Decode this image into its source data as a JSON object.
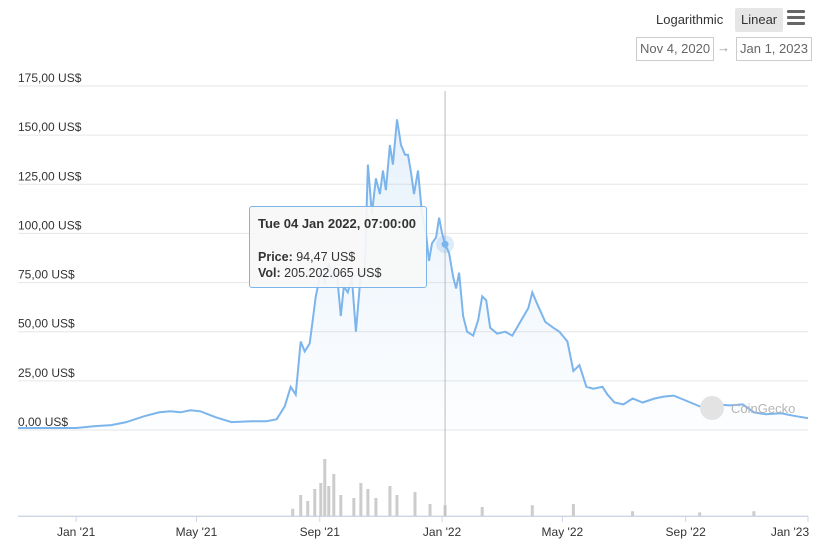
{
  "toolbar": {
    "log_label": "Logarithmic",
    "linear_label": "Linear",
    "menu_icon": "hamburger-menu-icon",
    "date_from": "Nov 4, 2020",
    "date_arrow": "→",
    "date_to": "Jan 1, 2023"
  },
  "tooltip": {
    "date": "Tue 04 Jan 2022, 07:00:00",
    "price_label": "Price:",
    "price_value": "94,47 US$",
    "vol_label": "Vol:",
    "vol_value": "205.202.065 US$"
  },
  "watermark": {
    "text": "CoinGecko",
    "icon": "coingecko-logo-icon"
  },
  "colors": {
    "line": "#7cb5ec",
    "grid": "#e6e6e6",
    "volume": "#cccccc"
  },
  "chart_data": {
    "type": "line",
    "x_range": [
      "2020-11-04",
      "2023-01-01"
    ],
    "ylim": [
      0,
      175
    ],
    "y_ticks": [
      "0,00 US$",
      "25,00 US$",
      "50,00 US$",
      "75,00 US$",
      "100,00 US$",
      "125,00 US$",
      "150,00 US$",
      "175,00 US$"
    ],
    "x_ticks": [
      "Jan '21",
      "May '21",
      "Sep '21",
      "Jan '22",
      "May '22",
      "Sep '22",
      "Jan '23"
    ],
    "x_tick_dates": [
      "2021-01-01",
      "2021-05-01",
      "2021-09-01",
      "2022-01-01",
      "2022-05-01",
      "2022-09-01",
      "2023-01-01"
    ],
    "grid": true,
    "crosshair_date": "2022-01-04",
    "series": [
      {
        "values": [
          [
            "2020-11-04",
            1.0
          ],
          [
            "2020-12-01",
            1.0
          ],
          [
            "2021-01-01",
            1.0
          ],
          [
            "2021-01-20",
            2.0
          ],
          [
            "2021-02-05",
            2.5
          ],
          [
            "2021-02-20",
            4.0
          ],
          [
            "2021-03-10",
            7.0
          ],
          [
            "2021-03-25",
            9.0
          ],
          [
            "2021-04-05",
            9.5
          ],
          [
            "2021-04-15",
            9.0
          ],
          [
            "2021-04-25",
            10.0
          ],
          [
            "2021-05-05",
            9.5
          ],
          [
            "2021-05-20",
            6.5
          ],
          [
            "2021-06-05",
            4.0
          ],
          [
            "2021-06-25",
            4.5
          ],
          [
            "2021-07-10",
            4.5
          ],
          [
            "2021-07-20",
            5.5
          ],
          [
            "2021-07-28",
            12.0
          ],
          [
            "2021-08-03",
            22.0
          ],
          [
            "2021-08-08",
            18.0
          ],
          [
            "2021-08-13",
            45.0
          ],
          [
            "2021-08-17",
            40.0
          ],
          [
            "2021-08-22",
            44.0
          ],
          [
            "2021-08-28",
            68.0
          ],
          [
            "2021-09-02",
            80.0
          ],
          [
            "2021-09-06",
            75.0
          ],
          [
            "2021-09-10",
            85.0
          ],
          [
            "2021-09-14",
            77.0
          ],
          [
            "2021-09-18",
            80.0
          ],
          [
            "2021-09-22",
            58.0
          ],
          [
            "2021-09-25",
            73.0
          ],
          [
            "2021-09-29",
            70.0
          ],
          [
            "2021-10-03",
            78.0
          ],
          [
            "2021-10-07",
            50.0
          ],
          [
            "2021-10-12",
            80.0
          ],
          [
            "2021-10-16",
            83.0
          ],
          [
            "2021-10-19",
            135.0
          ],
          [
            "2021-10-23",
            110.0
          ],
          [
            "2021-10-27",
            128.0
          ],
          [
            "2021-10-31",
            120.0
          ],
          [
            "2021-11-03",
            132.0
          ],
          [
            "2021-11-06",
            122.0
          ],
          [
            "2021-11-10",
            145.0
          ],
          [
            "2021-11-13",
            135.0
          ],
          [
            "2021-11-17",
            158.0
          ],
          [
            "2021-11-21",
            145.0
          ],
          [
            "2021-11-25",
            140.0
          ],
          [
            "2021-11-28",
            140.0
          ],
          [
            "2021-12-01",
            131.0
          ],
          [
            "2021-12-04",
            120.0
          ],
          [
            "2021-12-08",
            132.0
          ],
          [
            "2021-12-12",
            110.0
          ],
          [
            "2021-12-16",
            100.0
          ],
          [
            "2021-12-19",
            86.0
          ],
          [
            "2021-12-22",
            95.0
          ],
          [
            "2021-12-26",
            98.0
          ],
          [
            "2021-12-29",
            108.0
          ],
          [
            "2022-01-01",
            100.0
          ],
          [
            "2022-01-04",
            94.47
          ],
          [
            "2022-01-08",
            90.0
          ],
          [
            "2022-01-12",
            78.0
          ],
          [
            "2022-01-15",
            72.0
          ],
          [
            "2022-01-18",
            80.0
          ],
          [
            "2022-01-22",
            58.0
          ],
          [
            "2022-01-26",
            50.0
          ],
          [
            "2022-02-01",
            48.0
          ],
          [
            "2022-02-06",
            56.0
          ],
          [
            "2022-02-10",
            68.0
          ],
          [
            "2022-02-14",
            66.0
          ],
          [
            "2022-02-18",
            52.0
          ],
          [
            "2022-02-25",
            49.0
          ],
          [
            "2022-03-05",
            50.0
          ],
          [
            "2022-03-12",
            48.0
          ],
          [
            "2022-03-20",
            55.0
          ],
          [
            "2022-03-28",
            62.0
          ],
          [
            "2022-04-01",
            70.0
          ],
          [
            "2022-04-06",
            64.0
          ],
          [
            "2022-04-14",
            55.0
          ],
          [
            "2022-04-22",
            52.0
          ],
          [
            "2022-04-28",
            50.0
          ],
          [
            "2022-05-06",
            45.0
          ],
          [
            "2022-05-12",
            30.0
          ],
          [
            "2022-05-18",
            33.0
          ],
          [
            "2022-05-25",
            22.0
          ],
          [
            "2022-06-01",
            21.0
          ],
          [
            "2022-06-10",
            22.0
          ],
          [
            "2022-06-15",
            18.0
          ],
          [
            "2022-06-22",
            14.0
          ],
          [
            "2022-07-01",
            13.0
          ],
          [
            "2022-07-10",
            16.0
          ],
          [
            "2022-07-20",
            14.0
          ],
          [
            "2022-08-01",
            16.0
          ],
          [
            "2022-08-10",
            17.0
          ],
          [
            "2022-08-20",
            17.5
          ],
          [
            "2022-09-01",
            15.0
          ],
          [
            "2022-09-15",
            12.0
          ],
          [
            "2022-10-01",
            13.0
          ],
          [
            "2022-10-15",
            12.5
          ],
          [
            "2022-10-28",
            13.0
          ],
          [
            "2022-11-08",
            9.0
          ],
          [
            "2022-11-20",
            8.0
          ],
          [
            "2022-12-05",
            8.5
          ],
          [
            "2022-12-20",
            7.0
          ],
          [
            "2023-01-01",
            6.0
          ]
        ]
      }
    ],
    "volume_bars": [
      [
        "2021-08-05",
        0.12
      ],
      [
        "2021-08-13",
        0.35
      ],
      [
        "2021-08-20",
        0.25
      ],
      [
        "2021-08-27",
        0.45
      ],
      [
        "2021-09-02",
        0.55
      ],
      [
        "2021-09-06",
        0.95
      ],
      [
        "2021-09-10",
        0.5
      ],
      [
        "2021-09-15",
        0.7
      ],
      [
        "2021-09-22",
        0.35
      ],
      [
        "2021-10-05",
        0.3
      ],
      [
        "2021-10-12",
        0.55
      ],
      [
        "2021-10-19",
        0.45
      ],
      [
        "2021-10-27",
        0.3
      ],
      [
        "2021-11-10",
        0.5
      ],
      [
        "2021-11-17",
        0.35
      ],
      [
        "2021-12-05",
        0.4
      ],
      [
        "2021-12-20",
        0.2
      ],
      [
        "2022-01-04",
        0.18
      ],
      [
        "2022-02-10",
        0.15
      ],
      [
        "2022-04-01",
        0.18
      ],
      [
        "2022-05-12",
        0.2
      ],
      [
        "2022-07-10",
        0.08
      ],
      [
        "2022-09-15",
        0.06
      ],
      [
        "2022-11-08",
        0.08
      ]
    ]
  }
}
